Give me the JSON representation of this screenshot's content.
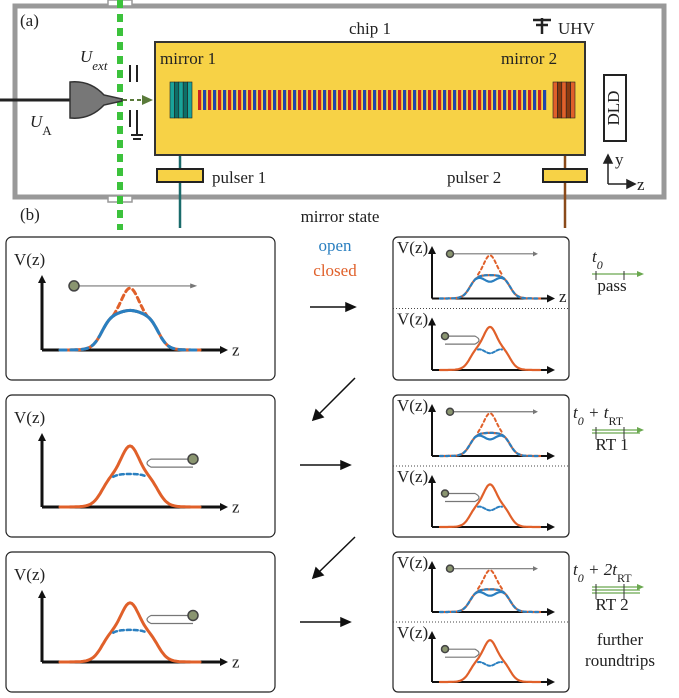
{
  "panel_a": {
    "label": "(a)",
    "chip": "chip 1",
    "uhv": "UHV",
    "u_ext": [
      "U",
      "ext"
    ],
    "u_a": [
      "U",
      "A"
    ],
    "mirror_1": "mirror 1",
    "mirror_2": "mirror 2",
    "detector": "DLD",
    "pulser_1": "pulser 1",
    "pulser_2": "pulser 2",
    "axes": {
      "y": "y",
      "z": "z"
    }
  },
  "panel_b": {
    "label": "(b)",
    "mirror_state": "mirror state",
    "legend": {
      "open": "open",
      "closed": "closed"
    },
    "large_plots": [
      {
        "ylabel": "V(z)",
        "xlabel": "z"
      },
      {
        "ylabel": "V(z)",
        "xlabel": "z"
      },
      {
        "ylabel": "V(z)",
        "xlabel": "z"
      }
    ],
    "small_plots": [
      {
        "top": {
          "ylabel": "V(z)",
          "xlabel": "z"
        },
        "bottom": {
          "ylabel": "V(z)"
        }
      },
      {
        "top": {
          "ylabel": "V(z)"
        },
        "bottom": {
          "ylabel": "V(z)"
        }
      },
      {
        "top": {
          "ylabel": "V(z)"
        },
        "bottom": {
          "ylabel": "V(z)"
        }
      }
    ],
    "times": [
      {
        "label": [
          [
            "t",
            "0"
          ]
        ],
        "caption": [
          "pass"
        ]
      },
      {
        "label": [
          [
            "t",
            "0"
          ],
          [
            " + t",
            "RT"
          ]
        ],
        "caption": [
          "RT  1"
        ]
      },
      {
        "label": [
          [
            "t",
            "0"
          ],
          [
            " + 2t",
            "RT"
          ]
        ],
        "caption": [
          "RT  2"
        ]
      }
    ],
    "note": [
      "further",
      "roundtrips"
    ]
  }
}
